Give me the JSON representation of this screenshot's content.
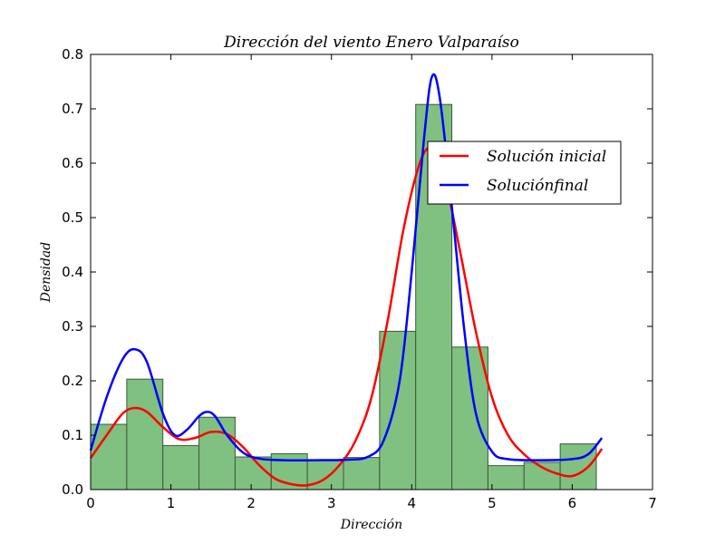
{
  "chart_data": {
    "type": "bar",
    "title": "Dirección del viento Enero Valparaíso",
    "xlabel": "Dirección",
    "ylabel": "Densidad",
    "xlim": [
      0,
      7
    ],
    "ylim": [
      0,
      0.8
    ],
    "xticks": [
      0,
      1,
      2,
      3,
      4,
      5,
      6,
      7
    ],
    "yticks": [
      0.0,
      0.1,
      0.2,
      0.3,
      0.4,
      0.5,
      0.6,
      0.7,
      0.8
    ],
    "xtick_labels": [
      "0",
      "1",
      "2",
      "3",
      "4",
      "5",
      "6",
      "7"
    ],
    "ytick_labels": [
      "0.0",
      "0.1",
      "0.2",
      "0.3",
      "0.4",
      "0.5",
      "0.6",
      "0.7",
      "0.8"
    ],
    "histogram": {
      "bin_edges": [
        0.0,
        0.45,
        0.9,
        1.35,
        1.8,
        2.25,
        2.7,
        3.15,
        3.6,
        4.05,
        4.5,
        4.95,
        5.4,
        5.85,
        6.3
      ],
      "densities": [
        0.12,
        0.203,
        0.081,
        0.133,
        0.06,
        0.066,
        0.055,
        0.059,
        0.291,
        0.708,
        0.262,
        0.044,
        0.05,
        0.084
      ],
      "fill_color": "#80c080",
      "edge_color": "#3a5a3a"
    },
    "series": [
      {
        "name": "Solución inicial",
        "color": "#ff0000",
        "x": [
          0,
          0.2,
          0.4,
          0.55,
          0.7,
          0.9,
          1.1,
          1.3,
          1.5,
          1.7,
          1.9,
          2.1,
          2.3,
          2.5,
          2.7,
          2.9,
          3.1,
          3.3,
          3.5,
          3.7,
          3.9,
          4.1,
          4.25,
          4.4,
          4.6,
          4.8,
          5.0,
          5.2,
          5.4,
          5.6,
          5.8,
          6.0,
          6.2,
          6.37
        ],
        "y": [
          0.058,
          0.1,
          0.14,
          0.15,
          0.143,
          0.115,
          0.093,
          0.095,
          0.106,
          0.102,
          0.078,
          0.045,
          0.02,
          0.01,
          0.008,
          0.018,
          0.045,
          0.09,
          0.17,
          0.31,
          0.48,
          0.6,
          0.628,
          0.58,
          0.44,
          0.29,
          0.17,
          0.1,
          0.065,
          0.043,
          0.03,
          0.025,
          0.042,
          0.075
        ]
      },
      {
        "name": "Soluciónfinal",
        "color": "#0000ff",
        "x": [
          0,
          0.2,
          0.4,
          0.55,
          0.7,
          0.9,
          1.05,
          1.2,
          1.35,
          1.45,
          1.55,
          1.7,
          1.9,
          2.1,
          2.4,
          2.8,
          3.2,
          3.45,
          3.65,
          3.85,
          4.0,
          4.15,
          4.25,
          4.35,
          4.5,
          4.65,
          4.8,
          5.0,
          5.2,
          5.6,
          6.0,
          6.2,
          6.37
        ],
        "y": [
          0.072,
          0.17,
          0.24,
          0.258,
          0.235,
          0.14,
          0.1,
          0.11,
          0.135,
          0.143,
          0.135,
          0.1,
          0.068,
          0.057,
          0.054,
          0.054,
          0.055,
          0.06,
          0.09,
          0.2,
          0.4,
          0.64,
          0.758,
          0.72,
          0.52,
          0.3,
          0.14,
          0.07,
          0.056,
          0.054,
          0.056,
          0.065,
          0.095
        ]
      }
    ],
    "legend": {
      "placement": "upper-right",
      "entries": [
        "Solución inicial",
        "Soluciónfinal"
      ]
    },
    "grid": false
  }
}
